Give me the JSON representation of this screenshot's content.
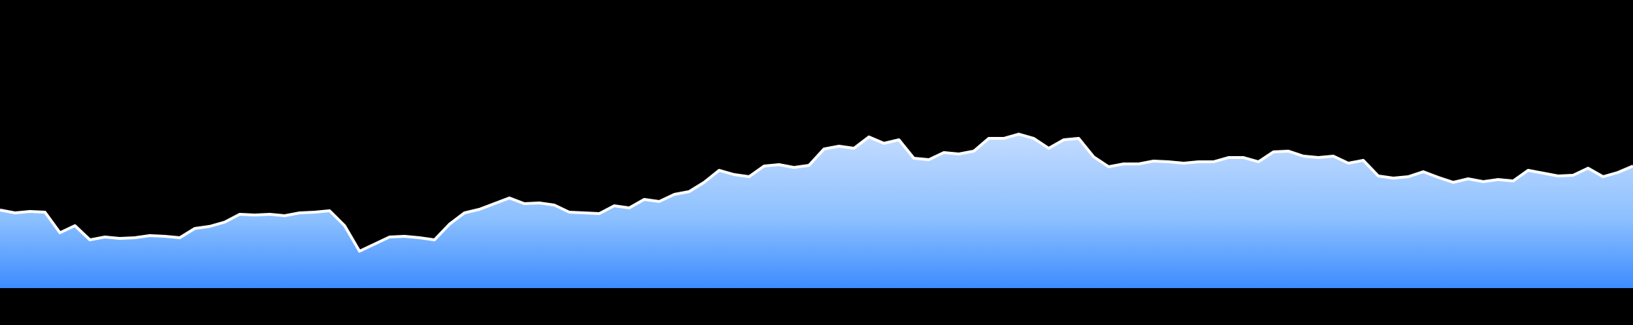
{
  "chart_data": {
    "type": "area",
    "title": "",
    "xlabel": "",
    "ylabel": "",
    "grid": false,
    "legend": "none",
    "ylim": [
      0,
      400
    ],
    "colors": {
      "background": "#000000",
      "line": "#ffffff",
      "fill_top": "#c4dcff",
      "fill_mid": "#8cc0ff",
      "fill_bottom": "#3d8cff"
    },
    "series": [
      {
        "values": [
          110,
          106,
          108,
          107,
          78,
          88,
          68,
          72,
          70,
          71,
          74,
          73,
          71,
          84,
          87,
          93,
          104,
          103,
          104,
          102,
          106,
          107,
          109,
          88,
          52,
          62,
          72,
          73,
          71,
          68,
          90,
          106,
          111,
          119,
          127,
          119,
          120,
          117,
          107,
          106,
          105,
          116,
          113,
          125,
          122,
          132,
          136,
          149,
          166,
          160,
          157,
          172,
          174,
          170,
          173,
          196,
          200,
          197,
          213,
          204,
          209,
          183,
          181,
          191,
          189,
          193,
          211,
          211,
          217,
          211,
          197,
          209,
          211,
          185,
          171,
          175,
          175,
          179,
          178,
          176,
          178,
          178,
          184,
          184,
          178,
          192,
          193,
          186,
          184,
          186,
          176,
          180,
          158,
          155,
          157,
          164,
          156,
          149,
          154,
          150,
          153,
          151,
          166,
          162,
          158,
          159,
          169,
          157,
          163,
          172
        ]
      }
    ]
  }
}
